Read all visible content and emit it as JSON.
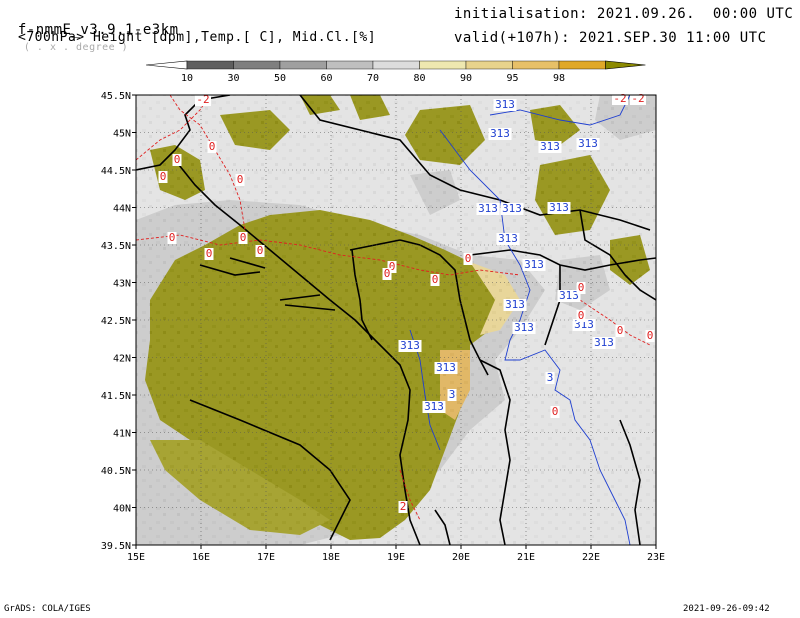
{
  "header": {
    "model": "f-nmmE_v3.9.1-e3km",
    "projection": "( . x . degree )",
    "fields": "<700hPa> Height [dpm],Temp.[ C], Mid.Cl.[%]",
    "init": "initialisation: 2021.09.26.  00:00 UTC",
    "valid": "valid(+107h): 2021.SEP.30 11:00 UTC"
  },
  "colorbar": {
    "labels": [
      "10",
      "30",
      "50",
      "60",
      "70",
      "80",
      "90",
      "95",
      "98"
    ],
    "colors": [
      "#5f5f5f",
      "#7f7f7f",
      "#9f9f9f",
      "#bfbfbf",
      "#dcdcdc",
      "#eee8b0",
      "#e8d38c",
      "#e7c068",
      "#e0a828",
      "#8c8a00"
    ]
  },
  "axes": {
    "lat_labels": [
      "45.5N",
      "45N",
      "44.5N",
      "44N",
      "43.5N",
      "43N",
      "42.5N",
      "42N",
      "41.5N",
      "41N",
      "40.5N",
      "40N",
      "39.5N"
    ],
    "lon_labels": [
      "15E",
      "16E",
      "17E",
      "18E",
      "19E",
      "20E",
      "21E",
      "22E",
      "23E"
    ]
  },
  "contours": {
    "height_labels": [
      "313",
      "313",
      "313",
      "313",
      "313",
      "313",
      "313",
      "313",
      "313",
      "313",
      "313",
      "313",
      "313",
      "313",
      "313",
      "313",
      "3",
      "3",
      "313"
    ],
    "temp_labels": [
      "-2",
      "-2",
      "-2",
      "0",
      "0",
      "0",
      "0",
      "0",
      "0",
      "0",
      "0",
      "0",
      "0",
      "0",
      "0",
      "0",
      "0",
      "0",
      "2",
      "0",
      "0"
    ]
  },
  "footer": {
    "left": "GrADS: COLA/IGES",
    "right": "2021-09-26-09:42"
  }
}
